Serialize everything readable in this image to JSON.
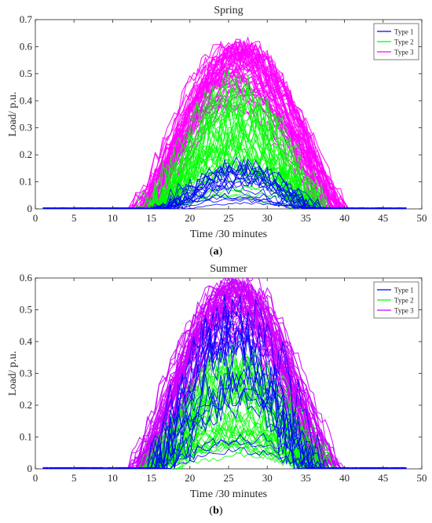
{
  "captions": {
    "a": "a",
    "b": "b"
  },
  "chart_data": [
    {
      "type": "line",
      "title": "Spring",
      "xlabel": "Time /30 minutes",
      "ylabel": "Load/ p.u.",
      "xlim": [
        0,
        50
      ],
      "ylim": [
        0,
        0.7
      ],
      "xticks": [
        "0",
        "5",
        "10",
        "15",
        "20",
        "25",
        "30",
        "35",
        "40",
        "45",
        "50"
      ],
      "yticks": [
        "0",
        "0.1",
        "0.2",
        "0.3",
        "0.4",
        "0.5",
        "0.6",
        "0.7"
      ],
      "grid": false,
      "legend_position": "top-right",
      "series": [
        {
          "name": "Type 1",
          "color": "#0000ff",
          "envelope": {
            "start": 15.5,
            "end": 37,
            "peak": 0.16
          }
        },
        {
          "name": "Type 2",
          "color": "#00ff00",
          "envelope": {
            "start": 14.5,
            "end": 37,
            "peak": 0.45
          }
        },
        {
          "name": "Type 3",
          "color": "#ff00ff",
          "envelope": {
            "start": 13,
            "end": 39.5,
            "peak": 0.61
          }
        }
      ]
    },
    {
      "type": "line",
      "title": "Summer",
      "xlabel": "Time /30 minutes",
      "ylabel": "Load/ p.u.",
      "xlim": [
        0,
        50
      ],
      "ylim": [
        0,
        0.6
      ],
      "xticks": [
        "0",
        "5",
        "10",
        "15",
        "20",
        "25",
        "30",
        "35",
        "40",
        "45",
        "50"
      ],
      "yticks": [
        "0",
        "0.1",
        "0.2",
        "0.3",
        "0.4",
        "0.5",
        "0.6"
      ],
      "grid": false,
      "legend_position": "top-right",
      "series": [
        {
          "name": "Type 1",
          "color": "#0000ff",
          "envelope": {
            "start": 15,
            "end": 37,
            "peak": 0.47
          }
        },
        {
          "name": "Type 2",
          "color": "#00ff00",
          "envelope": {
            "start": 14.5,
            "end": 37.5,
            "peak": 0.35
          }
        },
        {
          "name": "Type 3",
          "color": "#cc00ff",
          "envelope": {
            "start": 13,
            "end": 39,
            "peak": 0.59
          }
        }
      ]
    }
  ]
}
